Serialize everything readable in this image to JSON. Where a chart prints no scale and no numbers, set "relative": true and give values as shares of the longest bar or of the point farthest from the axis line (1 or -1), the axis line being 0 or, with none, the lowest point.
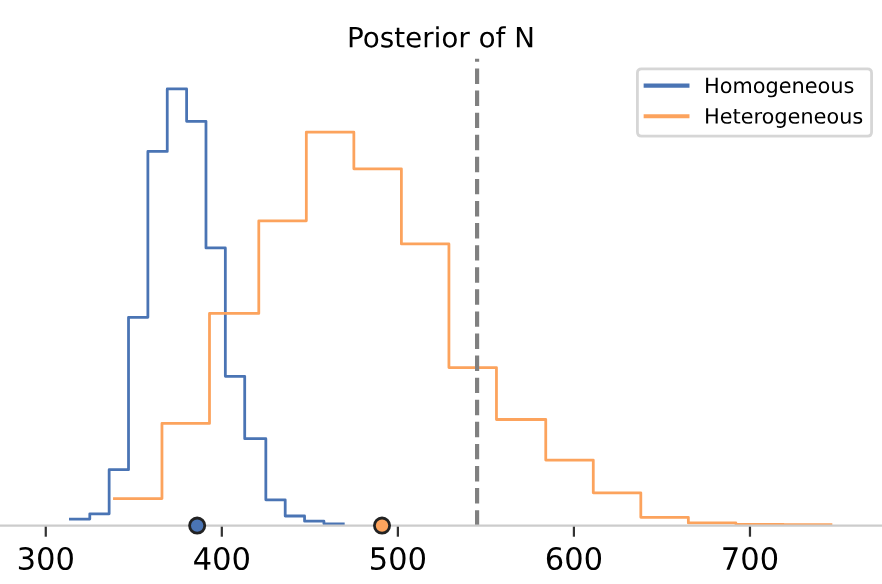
{
  "chart_data": {
    "type": "step",
    "title": "Posterior of N",
    "relative": true,
    "series": [
      {
        "name": "Homogeneous",
        "type": "step",
        "color": "#4a74b4",
        "x": [
          314,
          325,
          336,
          347,
          358,
          369,
          380,
          391,
          402,
          413,
          425,
          436,
          447,
          458,
          469
        ],
        "values": [
          0.015,
          0.027,
          0.128,
          0.477,
          0.857,
          1.0,
          0.926,
          0.636,
          0.342,
          0.199,
          0.059,
          0.022,
          0.01,
          0.004,
          0.004
        ]
      },
      {
        "name": "Heterogeneous",
        "type": "step",
        "color": "#fca35d",
        "x": [
          339,
          366,
          393,
          421,
          448,
          475,
          502,
          529,
          556,
          584,
          611,
          638,
          665,
          692,
          719,
          746
        ],
        "values": [
          0.062,
          0.234,
          0.486,
          0.698,
          0.901,
          0.817,
          0.645,
          0.362,
          0.243,
          0.15,
          0.075,
          0.019,
          0.006,
          0.003,
          0.002,
          0.002
        ]
      },
      {
        "type": "scatter",
        "color": "#4a74b4",
        "marker": "circle",
        "x": [
          386
        ],
        "values": [
          0
        ]
      },
      {
        "type": "scatter",
        "color": "#fca35d",
        "marker": "circle",
        "x": [
          491
        ],
        "values": [
          0
        ]
      }
    ],
    "ref_lines": [
      {
        "axis": "x",
        "value": 545,
        "color": "#808080",
        "line_style": "dashed"
      }
    ],
    "xlim": [
      274,
      775
    ],
    "xticks": [
      300,
      400,
      500,
      600,
      700
    ],
    "tick_labels": "x",
    "grid": false,
    "legend": "top right"
  }
}
